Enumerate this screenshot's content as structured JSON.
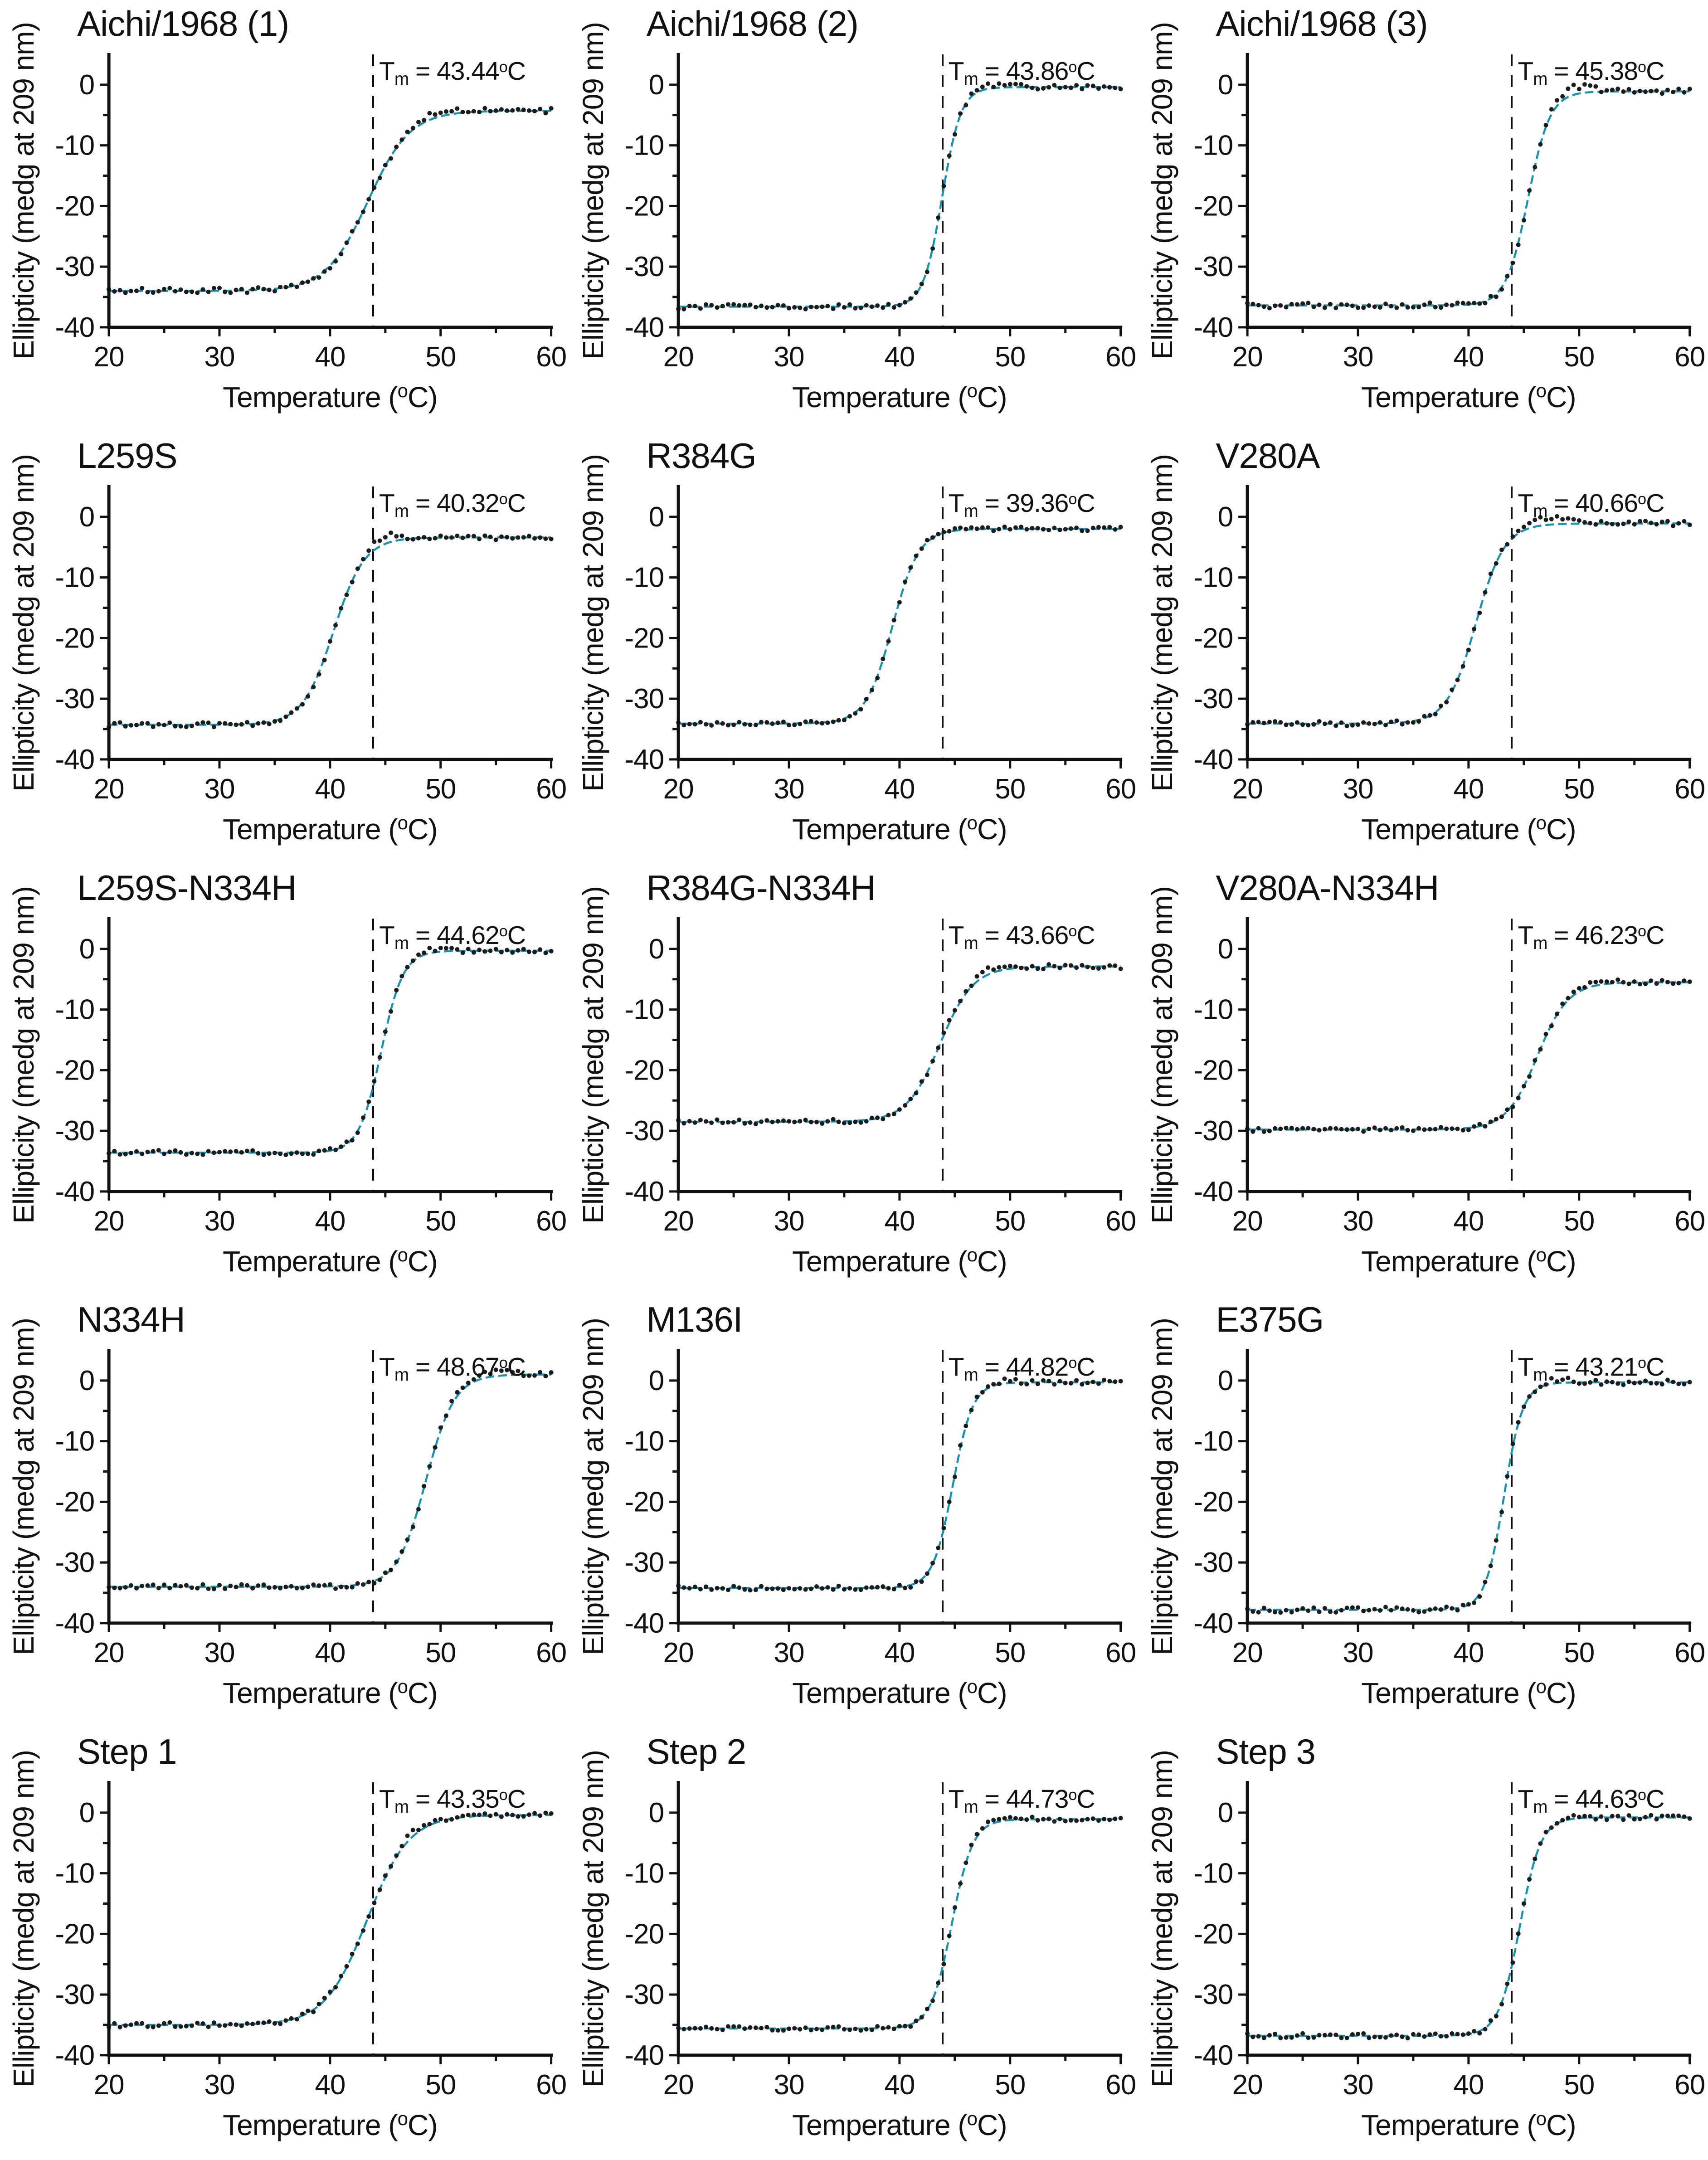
{
  "figure": {
    "background": "#ffffff",
    "accent_teal": "#1494b4",
    "point_color": "#1c1c1c",
    "axis_color": "#111111"
  },
  "labels": {
    "tm_t": "T",
    "tm_sub": "m",
    "tm_eq": " = ",
    "deg": "o",
    "unit": "C",
    "xlabel_pre": "Temperature (",
    "xlabel_deg": "o",
    "xlabel_post": "C)",
    "ylabel": "Ellipticity (medg at 209 nm)"
  },
  "axes": {
    "xlim": [
      20,
      60
    ],
    "ylim": [
      -40,
      5
    ],
    "x_major_ticks": [
      20,
      30,
      40,
      50,
      60
    ],
    "x_minor_ticks": [
      25,
      35,
      45,
      55
    ],
    "y_major_ticks": [
      0,
      -10,
      -20,
      -30,
      -40
    ],
    "y_minor_ticks": [
      -5,
      -15,
      -25,
      -35
    ],
    "reference_line_x": 43.9,
    "grid": false,
    "legend": "none",
    "series_description": "black dots = measured CD ellipticity every 0.5 C; teal dashed line = sigmoid melting fit; black vertical dashed line = wild-type Tm reference (~43.9 C)"
  },
  "chart_data": [
    {
      "type": "scatter",
      "title": "Aichi/1968 (1)",
      "tm_text": "43.44",
      "tm_c": 43.44,
      "x_step": 0.5,
      "noise": 0.45,
      "seed": 3,
      "fit": {
        "model": "sigmoid",
        "baseline": -34.0,
        "plateau": -4.3,
        "midpoint": 43.44,
        "width": 1.9
      },
      "overshoot": {
        "amp": 0.8,
        "center": 50.0,
        "width": 2.0
      }
    },
    {
      "type": "scatter",
      "title": "Aichi/1968 (2)",
      "tm_text": "43.86",
      "tm_c": 43.86,
      "x_step": 0.5,
      "noise": 0.4,
      "seed": 7,
      "fit": {
        "model": "sigmoid",
        "baseline": -36.6,
        "plateau": -0.4,
        "midpoint": 43.86,
        "width": 0.85
      },
      "overshoot": {
        "amp": 0.5,
        "center": 48.5,
        "width": 1.5
      }
    },
    {
      "type": "scatter",
      "title": "Aichi/1968 (3)",
      "tm_text": "45.38",
      "tm_c": 45.38,
      "x_step": 0.5,
      "noise": 0.45,
      "seed": 11,
      "fit": {
        "model": "sigmoid",
        "baseline": -36.4,
        "plateau": -1.1,
        "midpoint": 45.38,
        "width": 1.0
      },
      "overshoot": {
        "amp": 1.2,
        "center": 49.5,
        "width": 1.5
      }
    },
    {
      "type": "scatter",
      "title": "L259S",
      "tm_text": "40.32",
      "tm_c": 40.32,
      "x_step": 0.5,
      "noise": 0.4,
      "seed": 13,
      "fit": {
        "model": "sigmoid",
        "baseline": -34.3,
        "plateau": -3.4,
        "midpoint": 40.32,
        "width": 1.4
      },
      "overshoot": {
        "amp": 1.4,
        "center": 45.0,
        "width": 1.2
      }
    },
    {
      "type": "scatter",
      "title": "R384G",
      "tm_text": "39.36",
      "tm_c": 39.36,
      "x_step": 0.5,
      "noise": 0.35,
      "seed": 17,
      "fit": {
        "model": "sigmoid",
        "baseline": -34.1,
        "plateau": -2.0,
        "midpoint": 39.36,
        "width": 1.2
      },
      "overshoot": {
        "amp": 0.3,
        "center": 44.0,
        "width": 2.0
      }
    },
    {
      "type": "scatter",
      "title": "V280A",
      "tm_text": "40.66",
      "tm_c": 40.66,
      "x_step": 0.5,
      "noise": 0.4,
      "seed": 19,
      "fit": {
        "model": "sigmoid",
        "baseline": -34.1,
        "plateau": -1.1,
        "midpoint": 40.66,
        "width": 1.3
      },
      "overshoot": {
        "amp": 1.2,
        "center": 47.5,
        "width": 2.0
      }
    },
    {
      "type": "scatter",
      "title": "L259S-N334H",
      "tm_text": "44.62",
      "tm_c": 44.62,
      "x_step": 0.5,
      "noise": 0.4,
      "seed": 23,
      "fit": {
        "model": "sigmoid",
        "baseline": -33.6,
        "plateau": -0.3,
        "midpoint": 44.62,
        "width": 1.0
      },
      "overshoot": {
        "amp": 0.5,
        "center": 48.5,
        "width": 1.5
      }
    },
    {
      "type": "scatter",
      "title": "R384G-N334H",
      "tm_text": "43.66",
      "tm_c": 43.66,
      "x_step": 0.5,
      "noise": 0.4,
      "seed": 29,
      "fit": {
        "model": "sigmoid",
        "baseline": -28.5,
        "plateau": -2.9,
        "midpoint": 43.66,
        "width": 1.5
      },
      "overshoot": {
        "amp": 0.9,
        "center": 48.0,
        "width": 1.5
      }
    },
    {
      "type": "scatter",
      "title": "V280A-N334H",
      "tm_text": "46.23",
      "tm_c": 46.23,
      "x_step": 0.5,
      "noise": 0.35,
      "seed": 31,
      "fit": {
        "model": "sigmoid",
        "baseline": -29.8,
        "plateau": -5.5,
        "midpoint": 46.23,
        "width": 1.4
      },
      "overshoot": {
        "amp": 0.6,
        "center": 51.0,
        "width": 2.0
      }
    },
    {
      "type": "scatter",
      "title": "N334H",
      "tm_text": "48.67",
      "tm_c": 48.67,
      "x_step": 0.5,
      "noise": 0.4,
      "seed": 37,
      "fit": {
        "model": "sigmoid",
        "baseline": -34.0,
        "plateau": 1.0,
        "midpoint": 48.67,
        "width": 1.3
      },
      "overshoot": {
        "amp": 0.8,
        "center": 54.0,
        "width": 2.0
      }
    },
    {
      "type": "scatter",
      "title": "M136I",
      "tm_text": "44.82",
      "tm_c": 44.82,
      "x_step": 0.5,
      "noise": 0.4,
      "seed": 41,
      "fit": {
        "model": "sigmoid",
        "baseline": -34.2,
        "plateau": -0.3,
        "midpoint": 44.82,
        "width": 0.9
      },
      "overshoot": {
        "amp": 0.5,
        "center": 48.5,
        "width": 1.5
      }
    },
    {
      "type": "scatter",
      "title": "E375G",
      "tm_text": "43.21",
      "tm_c": 43.21,
      "x_step": 0.5,
      "noise": 0.45,
      "seed": 43,
      "fit": {
        "model": "sigmoid",
        "baseline": -37.8,
        "plateau": -0.3,
        "midpoint": 43.21,
        "width": 0.85
      },
      "overshoot": {
        "amp": 0.6,
        "center": 48.0,
        "width": 1.5
      }
    },
    {
      "type": "scatter",
      "title": "Step 1",
      "tm_text": "43.35",
      "tm_c": 43.35,
      "x_step": 0.5,
      "noise": 0.4,
      "seed": 47,
      "fit": {
        "model": "sigmoid",
        "baseline": -35.0,
        "plateau": -0.4,
        "midpoint": 43.35,
        "width": 1.9
      },
      "overshoot": {
        "amp": 0.7,
        "center": 47.5,
        "width": 1.5
      }
    },
    {
      "type": "scatter",
      "title": "Step 2",
      "tm_text": "44.73",
      "tm_c": 44.73,
      "x_step": 0.5,
      "noise": 0.35,
      "seed": 53,
      "fit": {
        "model": "sigmoid",
        "baseline": -35.6,
        "plateau": -1.1,
        "midpoint": 44.73,
        "width": 0.95
      },
      "overshoot": {
        "amp": 0.6,
        "center": 49.0,
        "width": 1.5
      }
    },
    {
      "type": "scatter",
      "title": "Step 3",
      "tm_text": "44.63",
      "tm_c": 44.63,
      "x_step": 0.5,
      "noise": 0.4,
      "seed": 59,
      "fit": {
        "model": "sigmoid",
        "baseline": -36.8,
        "plateau": -0.8,
        "midpoint": 44.63,
        "width": 0.95
      },
      "overshoot": {
        "amp": 0.4,
        "center": 49.0,
        "width": 1.5
      }
    }
  ]
}
